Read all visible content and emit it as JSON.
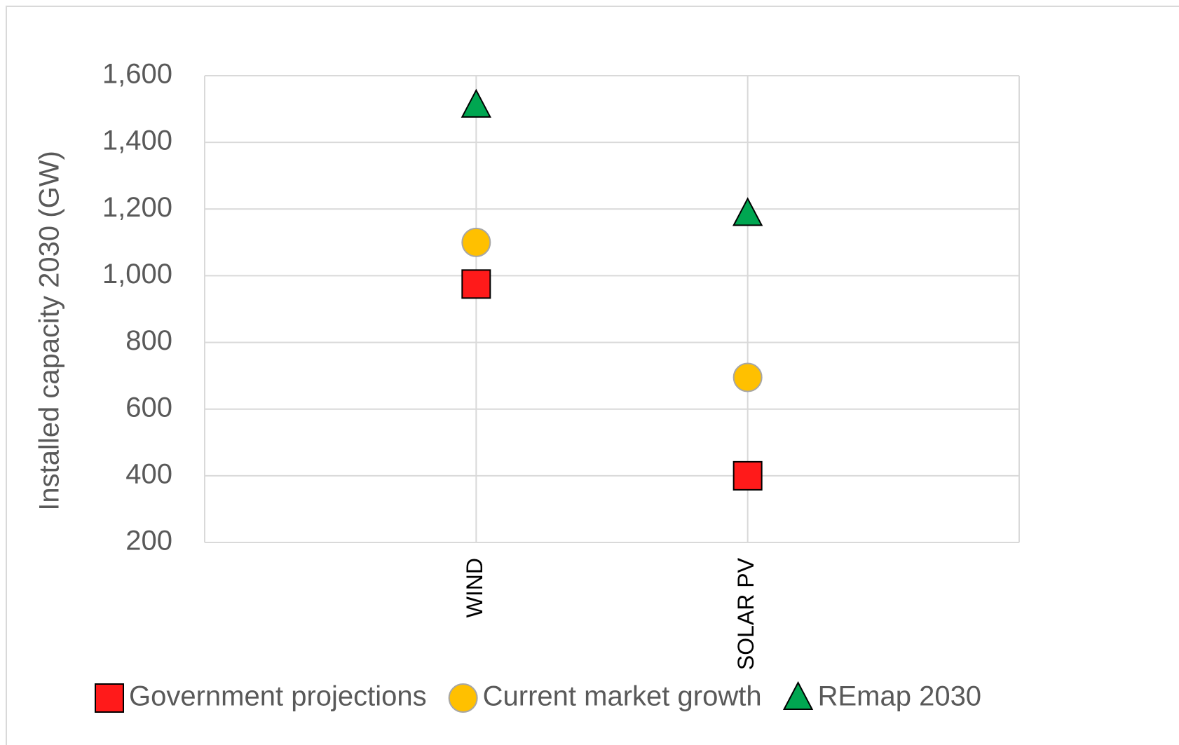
{
  "chart_data": {
    "type": "scatter",
    "y_label": "Installed capacity 2030 (GW)",
    "categories": [
      "WIND",
      "SOLAR PV"
    ],
    "series": [
      {
        "name": "Government projections",
        "color": "#ff1a1a",
        "marker": "square",
        "values": [
          975,
          400
        ]
      },
      {
        "name": "Current market growth",
        "color": "#ffc000",
        "marker": "circle",
        "values": [
          1100,
          695
        ]
      },
      {
        "name": "REmap 2030",
        "color": "#00a651",
        "marker": "triangle",
        "values": [
          1510,
          1185
        ]
      }
    ],
    "ylim": [
      200,
      1600
    ],
    "yticks": [
      200,
      400,
      600,
      800,
      {
        "value": 1000,
        "label": "1,000"
      },
      {
        "value": 1200,
        "label": "1,200"
      },
      {
        "value": 1400,
        "label": "1,400"
      },
      {
        "value": 1600,
        "label": "1,600"
      }
    ],
    "grid": true,
    "legend": "bottom"
  }
}
